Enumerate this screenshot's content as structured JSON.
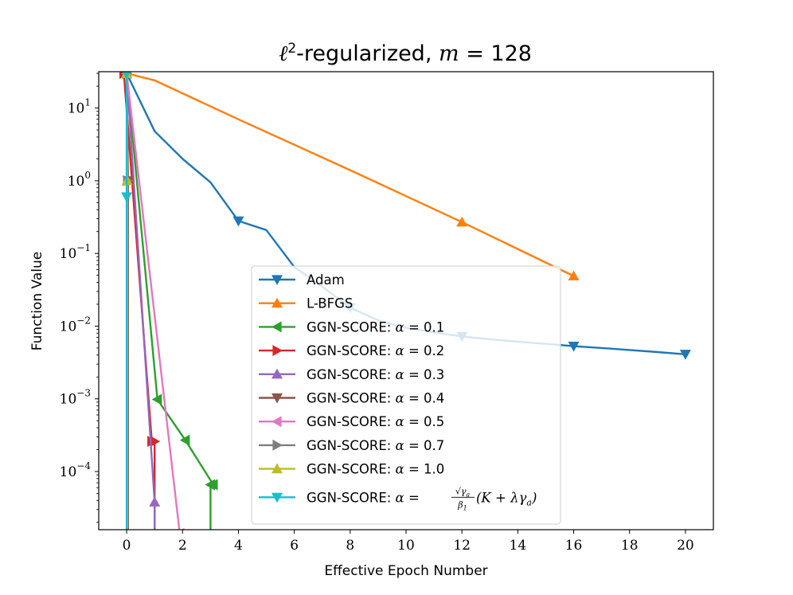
{
  "chart_data": {
    "type": "line",
    "title": {
      "prefix": "ℓ",
      "sup": "2",
      "rest": "-regularized, ",
      "var": "m",
      "eq": " = 128"
    },
    "xlabel": "Effective Epoch Number",
    "ylabel": "Function Value",
    "xlim": [
      -1,
      21
    ],
    "ylim_log10": [
      -4.8,
      1.5
    ],
    "yscale": "log",
    "x_ticks": [
      0,
      2,
      4,
      6,
      8,
      10,
      12,
      14,
      16,
      18,
      20
    ],
    "y_ticks": [
      {
        "base": "10",
        "exp": "1",
        "log": 1
      },
      {
        "base": "10",
        "exp": "0",
        "log": 0
      },
      {
        "base": "10",
        "exp": "−1",
        "log": -1
      },
      {
        "base": "10",
        "exp": "−2",
        "log": -2
      },
      {
        "base": "10",
        "exp": "−3",
        "log": -3
      },
      {
        "base": "10",
        "exp": "−4",
        "log": -4
      }
    ],
    "series": [
      {
        "name": "Adam",
        "label_prefix": "Adam",
        "label_math": "",
        "label_value": "",
        "color": "#1f77b4",
        "marker": "down",
        "marker_every": 4,
        "x": [
          0,
          1,
          2,
          3,
          4,
          5,
          6,
          7,
          8,
          9,
          10,
          11,
          12,
          13,
          14,
          15,
          16,
          17,
          18,
          19,
          20
        ],
        "y": [
          30,
          4.8,
          2.0,
          0.95,
          0.28,
          0.21,
          0.065,
          0.035,
          0.018,
          0.012,
          0.0095,
          0.0082,
          0.0072,
          0.0066,
          0.0061,
          0.0057,
          0.0053,
          0.005,
          0.0047,
          0.0044,
          0.0041
        ]
      },
      {
        "name": "L-BFGS",
        "label_prefix": "L-BFGS",
        "label_math": "",
        "label_value": "",
        "color": "#ff7f0e",
        "marker": "up",
        "marker_every": 4,
        "x": [
          0,
          1,
          4,
          8,
          12,
          16
        ],
        "y": [
          30,
          24,
          7.0,
          1.4,
          0.27,
          0.049
        ]
      },
      {
        "name": "GGN-SCORE: α = 0.1",
        "label_prefix": "GGN-SCORE: ",
        "label_math": "α",
        "label_value": " = 0.1",
        "color": "#2ca02c",
        "marker": "left",
        "marker_every": 1,
        "x": [
          0,
          1.1,
          2.1,
          3.1,
          3.0,
          3.0
        ],
        "y": [
          30,
          0.00098,
          0.00027,
          6.6e-05,
          6.6e-05,
          1e-06
        ]
      },
      {
        "name": "GGN-SCORE: α = 0.2",
        "label_prefix": "GGN-SCORE: ",
        "label_math": "α",
        "label_value": " = 0.2",
        "color": "#d62728",
        "marker": "right",
        "marker_every": 1,
        "x": [
          -0.1,
          0.9,
          1.0,
          1.0
        ],
        "y": [
          30,
          0.00026,
          0.00026,
          1e-06
        ]
      },
      {
        "name": "GGN-SCORE: α = 0.3",
        "label_prefix": "GGN-SCORE: ",
        "label_math": "α",
        "label_value": " = 0.3",
        "color": "#9467bd",
        "marker": "up",
        "marker_every": 1,
        "x": [
          0,
          1.0,
          1.0
        ],
        "y": [
          30,
          3.8e-05,
          1e-06
        ]
      },
      {
        "name": "GGN-SCORE: α = 0.4",
        "label_prefix": "GGN-SCORE: ",
        "label_math": "α",
        "label_value": " = 0.4",
        "color": "#8c564b",
        "marker": "down",
        "marker_every": 1,
        "x": [
          0,
          0.05,
          0.05
        ],
        "y": [
          30,
          1.0,
          1e-06
        ]
      },
      {
        "name": "GGN-SCORE: α = 0.5",
        "label_prefix": "GGN-SCORE: ",
        "label_math": "α",
        "label_value": " = 0.5",
        "color": "#e377c2",
        "marker": "left",
        "marker_every": 1,
        "x": [
          0,
          1.9,
          1.9
        ],
        "y": [
          30,
          1.4e-05,
          1e-06
        ]
      },
      {
        "name": "GGN-SCORE: α = 0.7",
        "label_prefix": "GGN-SCORE: ",
        "label_math": "α",
        "label_value": " = 0.7",
        "color": "#7f7f7f",
        "marker": "right",
        "marker_every": 1,
        "x": [
          0,
          0.03,
          0.03
        ],
        "y": [
          30,
          1.0,
          1e-06
        ]
      },
      {
        "name": "GGN-SCORE: α = 1.0",
        "label_prefix": "GGN-SCORE: ",
        "label_math": "α",
        "label_value": " = 1.0",
        "color": "#bcbd22",
        "marker": "up",
        "marker_every": 1,
        "x": [
          0,
          0.02,
          0.02
        ],
        "y": [
          30,
          1.0,
          1e-06
        ]
      },
      {
        "name": "GGN-SCORE: α = √γa/β1 (K + λγa)",
        "label_prefix": "GGN-SCORE: ",
        "label_math": "α",
        "label_value": " = ",
        "frac_num": "√γ",
        "frac_num_sub": "a",
        "frac_den": "β",
        "frac_den_sub": "1",
        "frac_tail": "(K + λγ",
        "frac_tail_sub": "a",
        "frac_tail_end": ")",
        "color": "#17becf",
        "marker": "down",
        "marker_every": 1,
        "x": [
          0,
          0.0,
          0.0
        ],
        "y": [
          30,
          0.6,
          1e-06
        ]
      }
    ],
    "legend": "center"
  }
}
